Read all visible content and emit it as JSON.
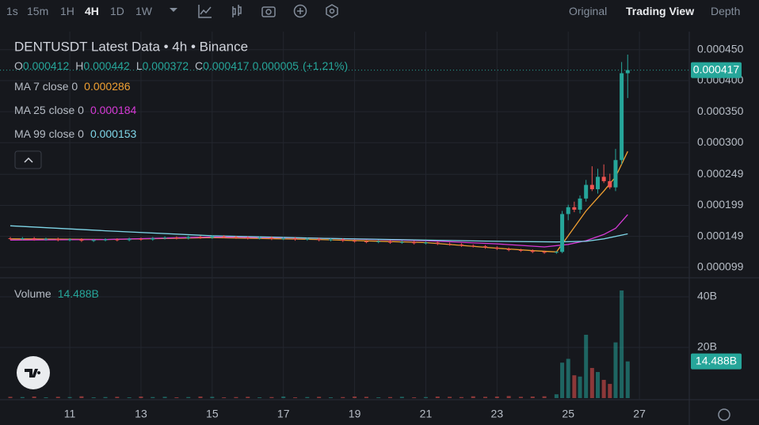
{
  "toolbar": {
    "intervals": [
      "1s",
      "15m",
      "1H",
      "4H",
      "1D",
      "1W"
    ],
    "active": "4H",
    "views": [
      "Original",
      "Trading View",
      "Depth"
    ],
    "active_view": "Trading View"
  },
  "legend": {
    "title": "DENTUSDT Latest Data • 4h • Binance",
    "ohlc": [
      {
        "label": "O",
        "value": "0.000412"
      },
      {
        "label": "H",
        "value": "0.000442"
      },
      {
        "label": "L",
        "value": "0.000372"
      },
      {
        "label": "C",
        "value": "0.000417"
      }
    ],
    "change": "0.000005",
    "change_pct": "(+1.21%)",
    "last_price": "0.000417",
    "volume": {
      "label": "Volume",
      "value": "14.488B"
    }
  },
  "chart_data": {
    "type": "candlestick",
    "up_color": "#26a69a",
    "down_color": "#ef5350",
    "xlim": [
      9.04,
      28.4
    ],
    "xticks": [
      11,
      13,
      15,
      17,
      19,
      21,
      23,
      25,
      27
    ],
    "ylim": [
      8.35e-05,
      0.000479
    ],
    "yticks": [
      {
        "value": 0.00045,
        "label": "0.000450"
      },
      {
        "value": 0.0004,
        "label": "0.000400"
      },
      {
        "value": 0.00035,
        "label": "0.000350"
      },
      {
        "value": 0.0003,
        "label": "0.000300"
      },
      {
        "value": 0.000249,
        "label": "0.000249"
      },
      {
        "value": 0.000199,
        "label": "0.000199"
      },
      {
        "value": 0.000149,
        "label": "0.000149"
      },
      {
        "value": 9.9e-05,
        "label": "0.000099"
      }
    ],
    "vlim": [
      0,
      47.2
    ],
    "vticks": [
      {
        "value": 20,
        "label": "20B"
      },
      {
        "value": 40,
        "label": "40B"
      }
    ],
    "grid": true,
    "x": [
      9.33,
      9.67,
      10,
      10.33,
      10.67,
      11,
      11.33,
      11.67,
      12,
      12.33,
      12.67,
      13,
      13.33,
      13.67,
      14,
      14.33,
      14.67,
      15,
      15.33,
      15.67,
      16,
      16.33,
      16.67,
      17,
      17.33,
      17.67,
      18,
      18.33,
      18.67,
      19,
      19.33,
      19.67,
      20,
      20.33,
      20.67,
      21,
      21.33,
      21.67,
      22,
      22.33,
      22.67,
      23,
      23.33,
      23.67,
      24,
      24.33,
      24.67,
      24.83,
      25,
      25.17,
      25.33,
      25.5,
      25.67,
      25.83,
      26,
      26.17,
      26.33,
      26.5,
      26.67
    ],
    "open": [
      0.000146,
      0.000145,
      0.000146,
      0.000144,
      0.000145,
      0.000143,
      0.000144,
      0.000142,
      0.000143,
      0.000144,
      0.000143,
      0.000145,
      0.000144,
      0.000146,
      0.000147,
      0.000146,
      0.000148,
      0.000147,
      0.000149,
      0.000148,
      0.000147,
      0.000146,
      0.000147,
      0.000145,
      0.000146,
      0.000144,
      0.000145,
      0.000143,
      0.000144,
      0.000142,
      0.000141,
      0.00014,
      0.000141,
      0.000139,
      0.00014,
      0.000138,
      0.000139,
      0.000137,
      0.000136,
      0.000134,
      0.000133,
      0.000131,
      0.000129,
      0.000127,
      0.000126,
      0.000124,
      0.000123,
      0.000124,
      0.000185,
      0.000196,
      0.000192,
      0.00021,
      0.000232,
      0.000225,
      0.000245,
      0.000238,
      0.000228,
      0.000272,
      0.000412
    ],
    "high": [
      0.000148,
      0.000148,
      0.000148,
      0.000147,
      0.000147,
      0.000146,
      0.000146,
      0.000145,
      0.000146,
      0.000146,
      0.000147,
      0.000147,
      0.000148,
      0.000149,
      0.000149,
      0.00015,
      0.00015,
      0.000151,
      0.000151,
      0.00015,
      0.000149,
      0.000149,
      0.000149,
      0.000148,
      0.000148,
      0.000147,
      0.000147,
      0.000146,
      0.000146,
      0.000144,
      0.000143,
      0.000143,
      0.000143,
      0.000142,
      0.000142,
      0.000141,
      0.000141,
      0.000139,
      0.000138,
      0.000136,
      0.000135,
      0.000133,
      0.000131,
      0.000129,
      0.000128,
      0.000126,
      0.000125,
      0.00019,
      0.0002,
      0.000205,
      0.000215,
      0.00024,
      0.000262,
      0.000258,
      0.000265,
      0.00025,
      0.00029,
      0.00043,
      0.000442
    ],
    "low": [
      0.000143,
      0.000143,
      0.000142,
      0.000142,
      0.000141,
      0.000141,
      0.00014,
      0.00014,
      0.000141,
      0.000141,
      0.000141,
      0.000142,
      0.000142,
      0.000144,
      0.000144,
      0.000144,
      0.000145,
      0.000145,
      0.000146,
      0.000145,
      0.000144,
      0.000144,
      0.000143,
      0.000143,
      0.000142,
      0.000142,
      0.000141,
      0.000141,
      0.00014,
      0.000139,
      0.000138,
      0.000138,
      0.000137,
      0.000137,
      0.000136,
      0.000136,
      0.000135,
      0.000134,
      0.000132,
      0.000131,
      0.000129,
      0.000127,
      0.000125,
      0.000124,
      0.000122,
      0.000121,
      0.000121,
      0.000122,
      0.000175,
      0.000188,
      0.000186,
      0.000205,
      0.000222,
      0.000218,
      0.000235,
      0.000225,
      0.000222,
      0.000265,
      0.000372
    ],
    "close": [
      0.000145,
      0.000146,
      0.000144,
      0.000145,
      0.000143,
      0.000144,
      0.000142,
      0.000143,
      0.000144,
      0.000143,
      0.000145,
      0.000144,
      0.000146,
      0.000147,
      0.000146,
      0.000148,
      0.000147,
      0.000149,
      0.000148,
      0.000147,
      0.000146,
      0.000147,
      0.000145,
      0.000146,
      0.000144,
      0.000145,
      0.000143,
      0.000144,
      0.000142,
      0.000141,
      0.00014,
      0.000141,
      0.000139,
      0.00014,
      0.000138,
      0.000139,
      0.000137,
      0.000136,
      0.000134,
      0.000133,
      0.000131,
      0.000129,
      0.000127,
      0.000126,
      0.000124,
      0.000123,
      0.000124,
      0.000185,
      0.000196,
      0.000192,
      0.00021,
      0.000232,
      0.000225,
      0.000245,
      0.000238,
      0.000228,
      0.000272,
      0.000412,
      0.000417
    ],
    "volume": [
      0.5,
      0.4,
      0.6,
      0.3,
      0.5,
      0.4,
      0.7,
      0.3,
      0.4,
      0.5,
      0.3,
      0.6,
      0.4,
      0.5,
      0.3,
      0.4,
      0.6,
      0.5,
      0.3,
      0.4,
      0.5,
      0.3,
      0.4,
      0.6,
      0.3,
      0.4,
      0.5,
      0.3,
      0.4,
      0.6,
      0.5,
      0.3,
      0.4,
      0.5,
      0.3,
      0.4,
      0.6,
      0.5,
      0.4,
      0.7,
      0.5,
      0.6,
      0.8,
      0.5,
      0.6,
      0.7,
      1.5,
      14,
      15.5,
      9,
      8.5,
      25,
      11.9,
      10.3,
      7.2,
      5.6,
      22,
      42.5,
      14.488
    ],
    "lines": [
      {
        "name": "MA 7 close 0",
        "value_label": "0.000286",
        "color": "#f0a032",
        "x": [
          9.33,
          12,
          15,
          18,
          21,
          23,
          24,
          24.67,
          25,
          25.5,
          26,
          26.33,
          26.67
        ],
        "values": [
          0.000145,
          0.000144,
          0.000147,
          0.000144,
          0.000139,
          0.00013,
          0.000126,
          0.000124,
          0.00015,
          0.00019,
          0.000222,
          0.000245,
          0.000286
        ]
      },
      {
        "name": "MA 25 close 0",
        "value_label": "0.000184",
        "color": "#d63ad6",
        "x": [
          9.33,
          12,
          15,
          18,
          21,
          23,
          24.33,
          25,
          25.5,
          26,
          26.33,
          26.67
        ],
        "values": [
          0.000143,
          0.000144,
          0.000148,
          0.000146,
          0.000142,
          0.000137,
          0.000132,
          0.000136,
          0.000142,
          0.000152,
          0.000162,
          0.000184
        ]
      },
      {
        "name": "MA 99 close 0",
        "value_label": "0.000153",
        "color": "#7fd6e8",
        "x": [
          9.33,
          12,
          15,
          18,
          21,
          23,
          24.67,
          25.5,
          26,
          26.67
        ],
        "values": [
          0.000166,
          0.000158,
          0.00015,
          0.000146,
          0.000143,
          0.000141,
          0.00014,
          0.000141,
          0.000145,
          0.000153
        ]
      }
    ]
  }
}
